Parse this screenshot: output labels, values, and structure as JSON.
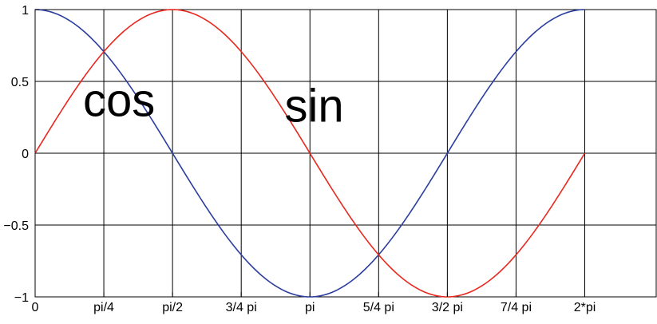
{
  "chart_data": {
    "type": "line",
    "x_tick_values": [
      0,
      0.7853981634,
      1.5707963268,
      2.3561944902,
      3.1415926536,
      3.926990817,
      4.7123889804,
      5.4977871438,
      6.2831853072
    ],
    "x_tick_labels": [
      "0",
      "pi/4",
      "pi/2",
      "3/4 pi",
      "pi",
      "5/4 pi",
      "3/2 pi",
      "7/4 pi",
      "2*pi"
    ],
    "y_tick_values": [
      -1,
      -0.5,
      0,
      0.5,
      1
    ],
    "y_tick_labels": [
      "−1",
      "−0.5",
      "0",
      "0.5",
      "1"
    ],
    "xlim": [
      0,
      7.1
    ],
    "ylim": [
      -1,
      1
    ],
    "grid": true,
    "series": [
      {
        "name": "cos",
        "color": "#2b3d9e",
        "function": "cos",
        "x_range": [
          0,
          6.2831853072
        ]
      },
      {
        "name": "sin",
        "color": "#e8281e",
        "function": "sin",
        "x_range": [
          0,
          6.2831853072
        ]
      }
    ],
    "annotations": [
      {
        "text": "cos",
        "x": 0.96,
        "y": 0.37
      },
      {
        "text": "sin",
        "x": 3.19,
        "y": 0.33
      }
    ]
  }
}
